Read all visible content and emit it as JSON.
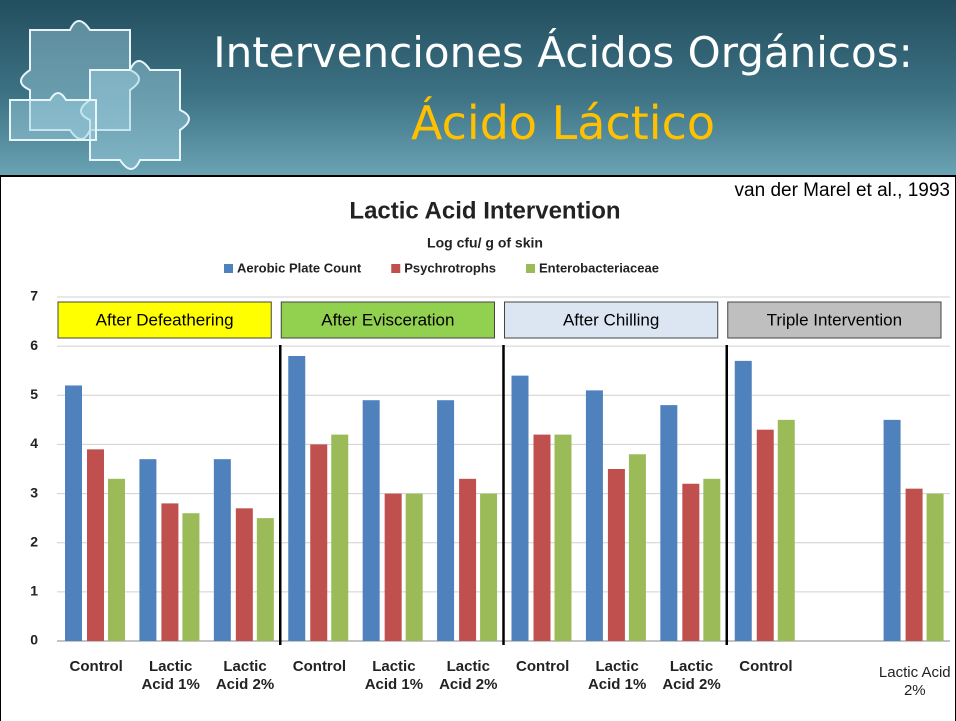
{
  "header": {
    "title_line1": "Intervenciones Ácidos Orgánicos:",
    "title_line2": "Ácido Láctico"
  },
  "citation": "van der Marel et al., 1993",
  "chart_data": {
    "type": "bar",
    "title": "Lactic Acid Intervention",
    "subtitle": "Log cfu/ g of skin",
    "categories": [
      "Control",
      "Lactic Acid 1%",
      "Lactic Acid 2%",
      "Control",
      "Lactic Acid 1%",
      "Lactic Acid 2%",
      "Control",
      "Lactic Acid 1%",
      "Lactic Acid 2%",
      "Control",
      null,
      "Lactic Acid 2%"
    ],
    "series": [
      {
        "name": "Aerobic Plate Count",
        "color": "#4f81bd",
        "values": [
          5.2,
          3.7,
          3.7,
          5.8,
          4.9,
          4.9,
          5.4,
          5.1,
          4.8,
          5.7,
          null,
          4.5
        ]
      },
      {
        "name": "Psychrotrophs",
        "color": "#c0504d",
        "values": [
          3.9,
          2.8,
          2.7,
          4.0,
          3.0,
          3.3,
          4.2,
          3.5,
          3.2,
          4.3,
          null,
          3.1
        ]
      },
      {
        "name": "Enterobacteriaceae",
        "color": "#9bbb59",
        "values": [
          3.3,
          2.6,
          2.5,
          4.2,
          3.0,
          3.0,
          4.2,
          3.8,
          3.3,
          4.5,
          null,
          3.0
        ]
      }
    ],
    "sections": [
      {
        "label": "After Defeathering",
        "color": "#ffff00"
      },
      {
        "label": "After Evisceration",
        "color": "#92d050"
      },
      {
        "label": "After Chilling",
        "color": "#dce6f2"
      },
      {
        "label": "Triple Intervention",
        "color": "#bfbfbf"
      }
    ],
    "ylim": [
      0,
      7
    ],
    "yticks": [
      0,
      1,
      2,
      3,
      4,
      5,
      6,
      7
    ],
    "grid": true,
    "legend": "top"
  }
}
